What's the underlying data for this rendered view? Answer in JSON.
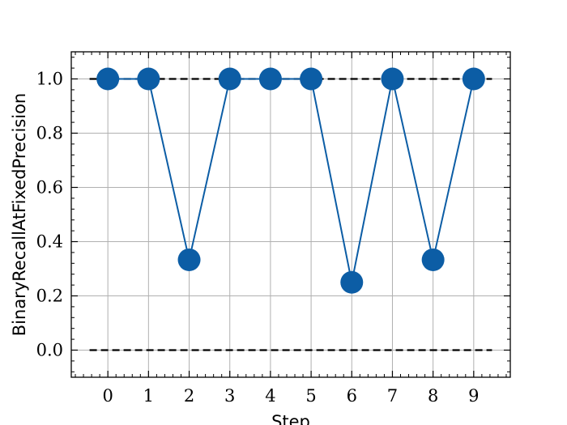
{
  "chart_data": {
    "type": "line",
    "xlabel": "Step",
    "ylabel": "BinaryRecallAtFixedPrecision",
    "x": [
      0,
      1,
      2,
      3,
      4,
      5,
      6,
      7,
      8,
      9
    ],
    "series": [
      {
        "values": [
          1.0,
          1.0,
          0.333,
          1.0,
          1.0,
          1.0,
          0.25,
          1.0,
          0.333,
          1.0
        ],
        "color": "#0c5da5"
      }
    ],
    "reference_lines": [
      {
        "y": 1.0,
        "style": "dashed",
        "color": "#000000"
      },
      {
        "y": 0.0,
        "style": "dashed",
        "color": "#000000"
      }
    ],
    "xlim": [
      -0.9,
      9.9
    ],
    "ylim": [
      -0.1,
      1.1
    ],
    "xticks": [
      "0",
      "1",
      "2",
      "3",
      "4",
      "5",
      "6",
      "7",
      "8",
      "9"
    ],
    "yticks": [
      "0.0",
      "0.2",
      "0.4",
      "0.6",
      "0.8",
      "1.0"
    ],
    "grid": true
  }
}
